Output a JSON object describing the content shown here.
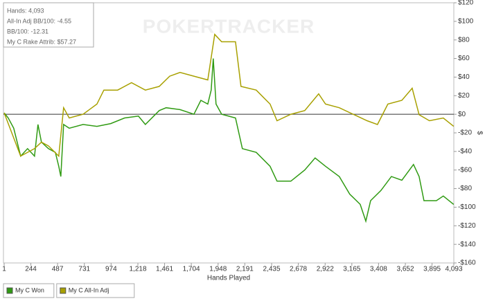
{
  "chart_data": {
    "type": "line",
    "xlabel": "Hands Played",
    "ylabel": "$",
    "watermark": "POKERTRACKER",
    "annotations": [
      "Hands: 4,093",
      "All-In Adj BB/100: -4.55",
      "BB/100: -12.31",
      "My C Rake Attrib: $57.27"
    ],
    "xlim": [
      1,
      4093
    ],
    "xticks": [
      1,
      244,
      487,
      731,
      974,
      {
        "value": 1218,
        "label": "1,218"
      },
      {
        "value": 1461,
        "label": "1,461"
      },
      {
        "value": 1704,
        "label": "1,704"
      },
      {
        "value": 1948,
        "label": "1,948"
      },
      {
        "value": 2191,
        "label": "2,191"
      },
      {
        "value": 2435,
        "label": "2,435"
      },
      {
        "value": 2678,
        "label": "2,678"
      },
      {
        "value": 2922,
        "label": "2,922"
      },
      {
        "value": 3165,
        "label": "3,165"
      },
      {
        "value": 3408,
        "label": "3,408"
      },
      {
        "value": 3652,
        "label": "3,652"
      },
      {
        "value": 3895,
        "label": "3,895"
      },
      {
        "value": 4093,
        "label": "4,093"
      }
    ],
    "ylim": [
      -160,
      120
    ],
    "yticks": [
      {
        "value": 120,
        "label": "$120"
      },
      {
        "value": 100,
        "label": "$100"
      },
      {
        "value": 80,
        "label": "$80"
      },
      {
        "value": 60,
        "label": "$60"
      },
      {
        "value": 40,
        "label": "$40"
      },
      {
        "value": 20,
        "label": "$20"
      },
      {
        "value": 0,
        "label": "$0"
      },
      {
        "value": -20,
        "label": "-$20"
      },
      {
        "value": -40,
        "label": "-$40"
      },
      {
        "value": -60,
        "label": "-$60"
      },
      {
        "value": -80,
        "label": "-$80"
      },
      {
        "value": -100,
        "label": "-$100"
      },
      {
        "value": -120,
        "label": "-$120"
      },
      {
        "value": -140,
        "label": "-$140"
      },
      {
        "value": -160,
        "label": "-$160"
      }
    ],
    "grid": false,
    "series": [
      {
        "name": "My C Won",
        "color": "#2f9a12",
        "x": [
          1,
          38,
          88,
          151,
          214,
          277,
          309,
          340,
          404,
          467,
          498,
          517,
          542,
          593,
          719,
          845,
          971,
          1097,
          1223,
          1286,
          1412,
          1475,
          1601,
          1728,
          1791,
          1854,
          1885,
          1904,
          1929,
          1980,
          2106,
          2169,
          2295,
          2421,
          2484,
          2610,
          2736,
          2831,
          2925,
          3051,
          3146,
          3241,
          3292,
          3336,
          3430,
          3525,
          3620,
          3726,
          3777,
          3821,
          3934,
          3997,
          4092
        ],
        "values": [
          1.5,
          -4,
          -15,
          -45,
          -37,
          -45,
          -11,
          -30,
          -37,
          -41,
          -56,
          -67,
          -11,
          -15,
          -11,
          -13,
          -10,
          -4,
          -2,
          -11,
          4,
          7,
          5,
          0,
          15,
          11,
          26,
          60,
          11,
          0,
          -4,
          -37,
          -41,
          -56,
          -72,
          -72,
          -60,
          -47,
          -56,
          -67,
          -86,
          -97,
          -115,
          -93,
          -82,
          -67,
          -71,
          -54,
          -67,
          -93,
          -93,
          -88,
          -97
        ]
      },
      {
        "name": "My C All-In Adj",
        "color": "#a8a000",
        "x": [
          1,
          151,
          277,
          340,
          404,
          498,
          542,
          593,
          719,
          845,
          908,
          1034,
          1160,
          1286,
          1412,
          1507,
          1601,
          1728,
          1854,
          1917,
          1980,
          2106,
          2156,
          2295,
          2421,
          2484,
          2610,
          2736,
          2863,
          2925,
          3051,
          3177,
          3304,
          3398,
          3493,
          3620,
          3714,
          3777,
          3871,
          3997,
          4092
        ],
        "values": [
          1.5,
          -45,
          -37,
          -30,
          -34,
          -45,
          7,
          -4,
          0,
          11,
          26,
          26,
          34,
          26,
          30,
          41,
          45,
          41,
          37,
          86,
          78,
          78,
          30,
          26,
          11,
          -7,
          0,
          4,
          22,
          11,
          7,
          0,
          -7,
          -11,
          11,
          15,
          28,
          -0.5,
          -7,
          -4,
          -13
        ]
      }
    ]
  }
}
